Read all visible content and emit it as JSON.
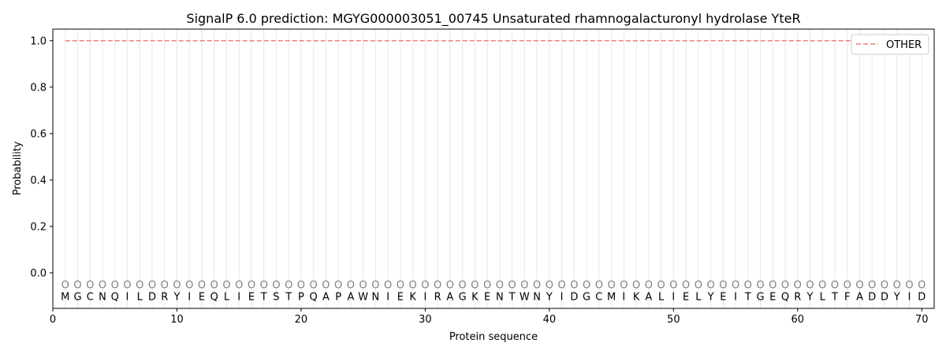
{
  "chart_data": {
    "type": "line",
    "title": "SignalP 6.0 prediction: MGYG000003051_00745 Unsaturated rhamnogalacturonyl hydrolase YteR",
    "xlabel": "Protein sequence",
    "ylabel": "Probability",
    "xlim": [
      0,
      71
    ],
    "ylim": [
      -0.153,
      1.05
    ],
    "xticks": [
      0,
      10,
      20,
      30,
      40,
      50,
      60,
      70
    ],
    "yticks": [
      "0.0",
      "0.2",
      "0.4",
      "0.6",
      "0.8",
      "1.0"
    ],
    "grid": "vertical lines at each residue",
    "legend_position": "top-right",
    "sequence": [
      "M",
      "G",
      "C",
      "N",
      "Q",
      "I",
      "L",
      "D",
      "R",
      "Y",
      "I",
      "E",
      "Q",
      "L",
      "I",
      "E",
      "T",
      "S",
      "T",
      "P",
      "Q",
      "A",
      "P",
      "A",
      "W",
      "N",
      "I",
      "E",
      "K",
      "I",
      "R",
      "A",
      "G",
      "K",
      "E",
      "N",
      "T",
      "W",
      "N",
      "Y",
      "I",
      "D",
      "G",
      "C",
      "M",
      "I",
      "K",
      "A",
      "L",
      "I",
      "E",
      "L",
      "Y",
      "E",
      "I",
      "T",
      "G",
      "E",
      "Q",
      "R",
      "Y",
      "L",
      "T",
      "F",
      "A",
      "D",
      "D",
      "Y",
      "I",
      "D"
    ],
    "predicted_labels_marker": "O",
    "series": [
      {
        "name": "OTHER",
        "color": "#f08080",
        "style": "dashed",
        "x": [
          1,
          70
        ],
        "y": [
          1.0,
          1.0
        ]
      }
    ]
  }
}
